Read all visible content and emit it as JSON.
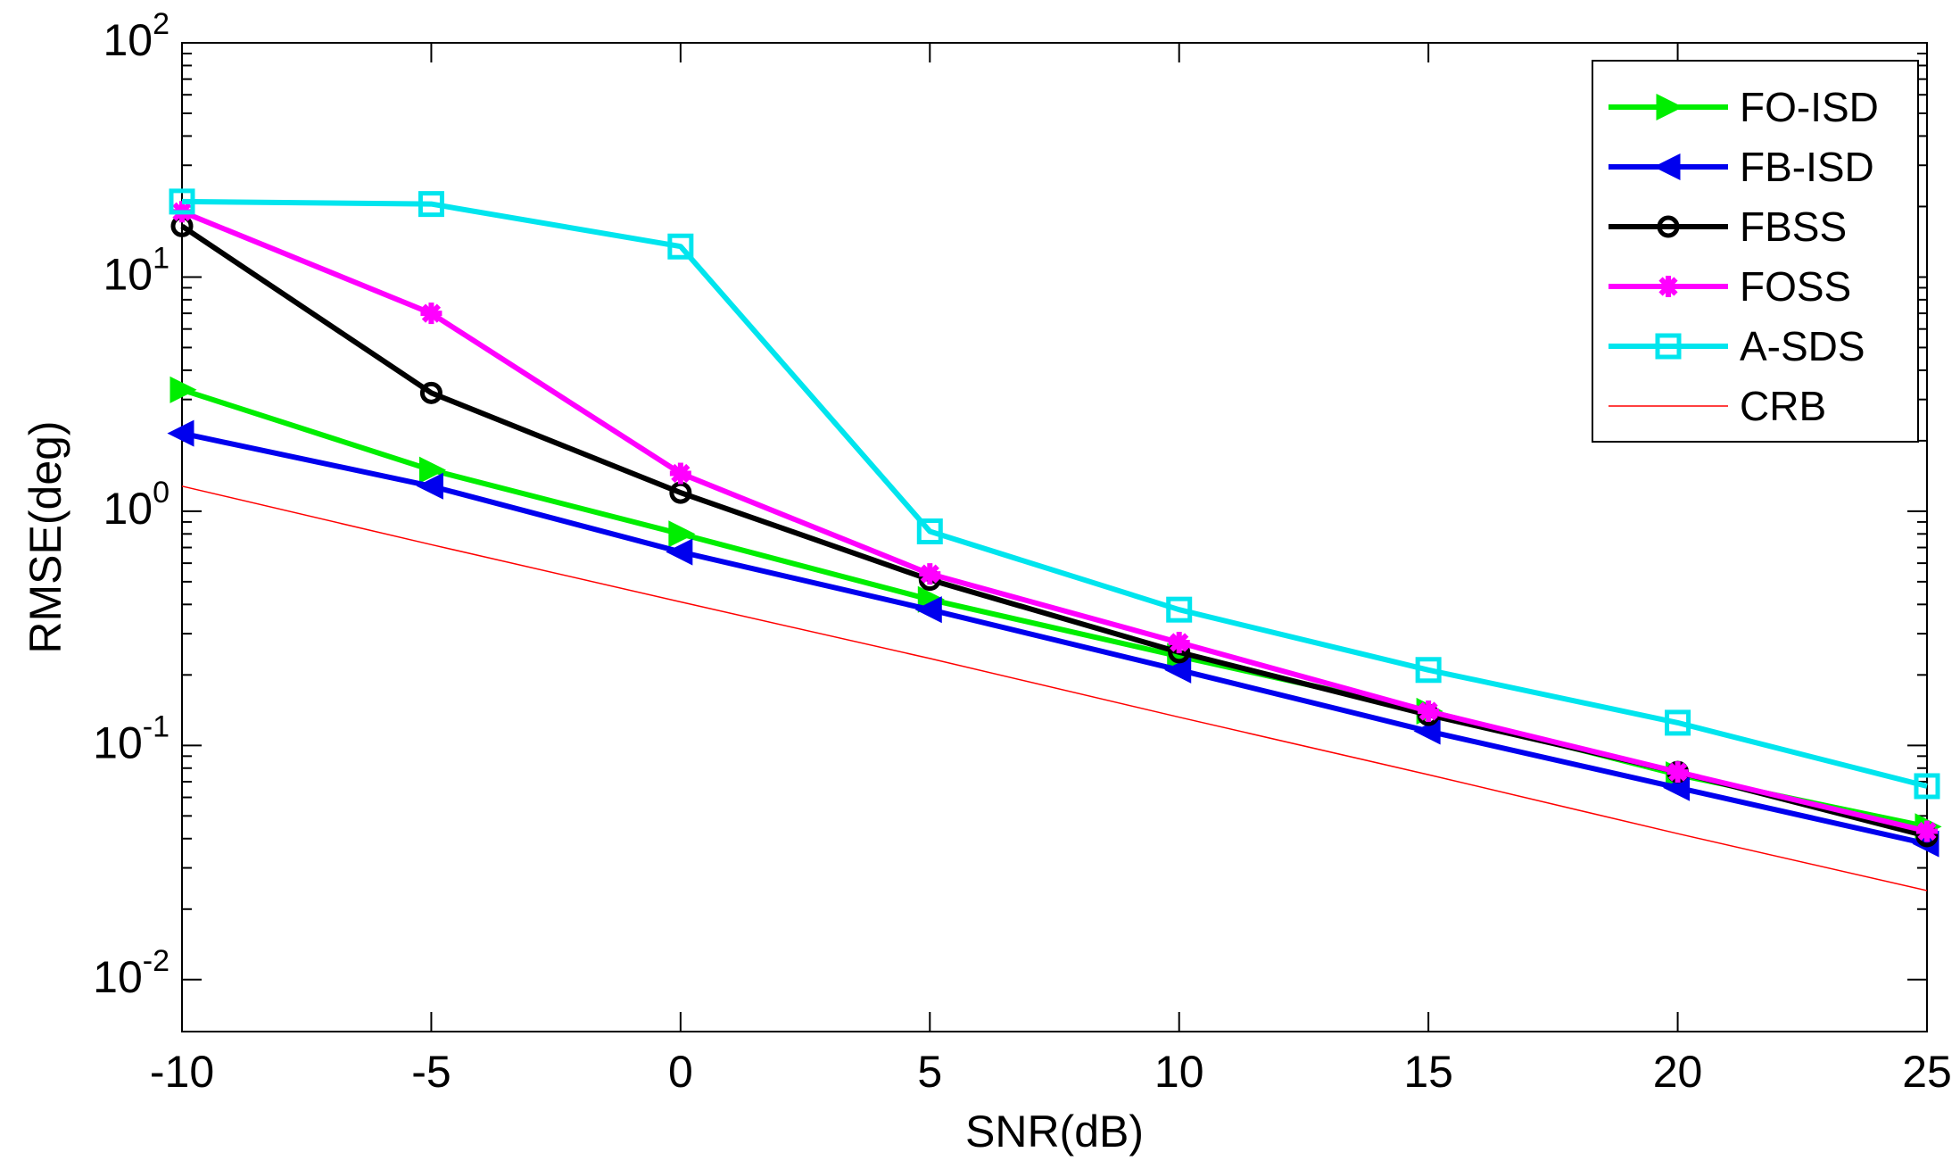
{
  "chart_data": {
    "type": "line",
    "title": "",
    "xlabel": "SNR(dB)",
    "ylabel": "RMSE(deg)",
    "yscale": "log",
    "xlim": [
      -10,
      25
    ],
    "ylim": [
      0.006,
      100
    ],
    "x": [
      -10,
      -5,
      0,
      5,
      10,
      15,
      20,
      25
    ],
    "x_ticks": [
      "-10",
      "-5",
      "0",
      "5",
      "10",
      "15",
      "20",
      "25"
    ],
    "y_ticks": [
      {
        "base": "10",
        "exp": "-2",
        "value": 0.01
      },
      {
        "base": "10",
        "exp": "-1",
        "value": 0.1
      },
      {
        "base": "10",
        "exp": "0",
        "value": 1
      },
      {
        "base": "10",
        "exp": "1",
        "value": 10
      },
      {
        "base": "10",
        "exp": "2",
        "value": 100
      }
    ],
    "series": [
      {
        "name": "FO-ISD",
        "color": "#00ee00",
        "marker": "triangle-right",
        "values": [
          3.3,
          1.5,
          0.8,
          0.42,
          0.24,
          0.14,
          0.075,
          0.045
        ]
      },
      {
        "name": "FB-ISD",
        "color": "#0000ee",
        "marker": "triangle-left",
        "values": [
          2.15,
          1.28,
          0.67,
          0.38,
          0.21,
          0.115,
          0.066,
          0.038
        ]
      },
      {
        "name": "FBSS",
        "color": "#000000",
        "marker": "circle",
        "values": [
          16.5,
          3.2,
          1.2,
          0.51,
          0.25,
          0.135,
          0.077,
          0.041
        ]
      },
      {
        "name": "FOSS",
        "color": "#ff00ff",
        "marker": "star",
        "values": [
          19.0,
          7.0,
          1.45,
          0.54,
          0.275,
          0.14,
          0.077,
          0.043
        ]
      },
      {
        "name": "A-SDS",
        "color": "#00e5ee",
        "marker": "square",
        "values": [
          21.0,
          20.5,
          13.5,
          0.82,
          0.38,
          0.21,
          0.125,
          0.067
        ]
      },
      {
        "name": "CRB",
        "color": "#ff0000",
        "marker": "none",
        "thin": true,
        "values": [
          1.28,
          0.72,
          0.41,
          0.235,
          0.132,
          0.075,
          0.042,
          0.024
        ]
      }
    ],
    "legend_position": "top-right",
    "grid": false
  }
}
